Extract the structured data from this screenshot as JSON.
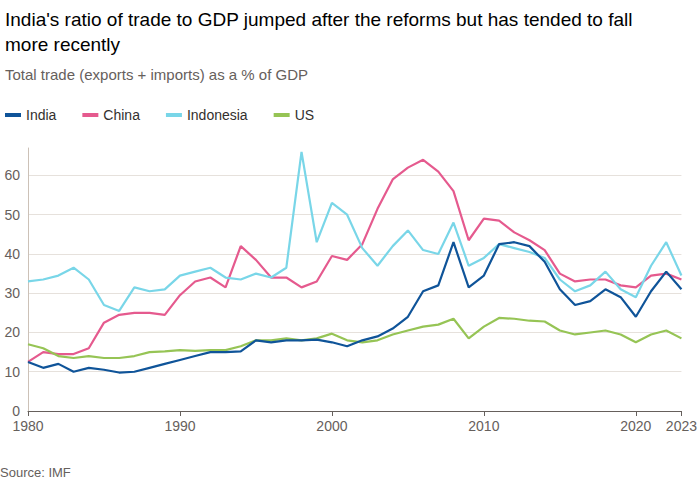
{
  "chart_data": {
    "type": "line",
    "title": "India's ratio of trade to GDP jumped after the reforms but has tended to fall more recently",
    "subtitle": "Total trade (exports + imports) as a % of GDP",
    "source": "Source: IMF",
    "x": [
      1980,
      1981,
      1982,
      1983,
      1984,
      1985,
      1986,
      1987,
      1988,
      1989,
      1990,
      1991,
      1992,
      1993,
      1994,
      1995,
      1996,
      1997,
      1998,
      1999,
      2000,
      2001,
      2002,
      2003,
      2004,
      2005,
      2006,
      2007,
      2008,
      2009,
      2010,
      2011,
      2012,
      2013,
      2014,
      2015,
      2016,
      2017,
      2018,
      2019,
      2020,
      2021,
      2022,
      2023
    ],
    "series": [
      {
        "name": "India",
        "color": "#0f5499",
        "values": [
          12.5,
          11,
          12,
          10,
          11,
          10.5,
          9.8,
          10,
          11,
          12,
          13,
          14,
          15,
          15,
          15.2,
          18,
          17.5,
          18,
          18,
          18.2,
          17.5,
          16.5,
          18,
          19,
          21,
          24,
          30.5,
          32,
          43,
          31.5,
          34.5,
          42.5,
          43,
          42,
          38,
          31,
          27,
          28,
          31,
          29,
          24,
          30.5,
          35.5,
          31
        ]
      },
      {
        "name": "China",
        "color": "#e55a8e",
        "values": [
          12.5,
          15,
          14.5,
          14.5,
          16,
          22.5,
          24.5,
          25,
          25,
          24.5,
          29.5,
          33,
          34,
          31.5,
          42,
          38.5,
          34,
          34,
          31.5,
          33,
          39.5,
          38.5,
          42.5,
          51.5,
          59,
          62,
          64,
          61,
          56,
          43.5,
          49,
          48.5,
          45.5,
          43.5,
          41,
          35,
          33,
          33.5,
          33.5,
          32,
          31.5,
          34.5,
          35,
          33.5
        ]
      },
      {
        "name": "Indonesia",
        "color": "#79d6e8",
        "values": [
          33,
          33.5,
          34.5,
          36.5,
          33.5,
          27,
          25.5,
          31.5,
          30.5,
          31,
          34.5,
          35.5,
          36.5,
          34,
          33.5,
          35,
          34,
          36.5,
          66,
          43,
          53,
          50,
          41.5,
          37,
          42,
          46,
          41,
          40,
          48,
          37,
          39,
          42.5,
          41.5,
          40.5,
          39,
          33.5,
          30.5,
          32,
          35.5,
          31,
          29,
          37,
          43,
          34.5
        ]
      },
      {
        "name": "US",
        "color": "#96c455",
        "values": [
          17,
          16,
          14,
          13.5,
          14,
          13.5,
          13.5,
          14,
          15,
          15.2,
          15.5,
          15.3,
          15.5,
          15.5,
          16.5,
          18,
          18,
          18.5,
          18,
          18.5,
          19.7,
          18,
          17.5,
          18,
          19.5,
          20.5,
          21.5,
          22,
          23.5,
          18.5,
          21.5,
          23.7,
          23.5,
          23,
          22.8,
          20.5,
          19.5,
          20,
          20.5,
          19.5,
          17.5,
          19.5,
          20.5,
          18.5
        ]
      }
    ],
    "xlim": [
      1980,
      2023
    ],
    "xticks": [
      1980,
      1990,
      2000,
      2010,
      2020,
      2023
    ],
    "ylim": [
      0,
      67
    ],
    "yticks": [
      0,
      10,
      20,
      30,
      40,
      50,
      60
    ],
    "grid": true,
    "legend": "top-left"
  }
}
